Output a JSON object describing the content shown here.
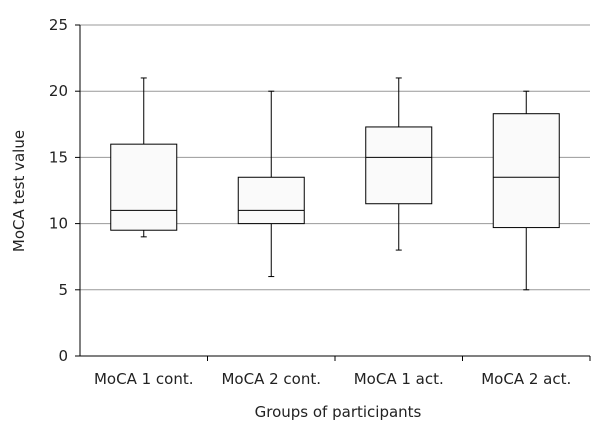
{
  "chart_data": {
    "type": "box",
    "title": "",
    "xlabel": "Groups of participants",
    "ylabel": "MoCA test value",
    "ylim": [
      0,
      25
    ],
    "yticks": [
      0,
      5,
      10,
      15,
      20,
      25
    ],
    "grid": true,
    "categories": [
      "MoCA 1 cont.",
      "MoCA 2 cont.",
      "MoCA 1 act.",
      "MoCA 2 act."
    ],
    "boxes": [
      {
        "category": "MoCA 1 cont.",
        "min": 9,
        "q1": 9.5,
        "median": 11,
        "q3": 16,
        "max": 21
      },
      {
        "category": "MoCA 2 cont.",
        "min": 6,
        "q1": 10,
        "median": 11,
        "q3": 13.5,
        "max": 20
      },
      {
        "category": "MoCA 1 act.",
        "min": 8,
        "q1": 11.5,
        "median": 15,
        "q3": 17.3,
        "max": 21
      },
      {
        "category": "MoCA 2 act.",
        "min": 5,
        "q1": 9.7,
        "median": 13.5,
        "q3": 18.3,
        "max": 20
      }
    ],
    "colors": {
      "box_fill": "#fafafa",
      "line": "#000000",
      "grid": "#999999"
    }
  }
}
